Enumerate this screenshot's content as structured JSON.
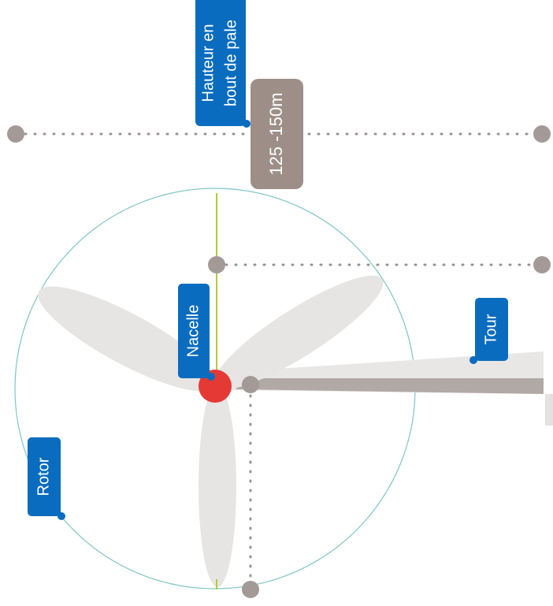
{
  "labels": {
    "hauteur": [
      "Hauteur en",
      "bout de pale"
    ],
    "hauteur_value": "125 -150m",
    "nacelle": "Nacelle",
    "tour": "Tour",
    "rotor": "Rotor"
  }
}
